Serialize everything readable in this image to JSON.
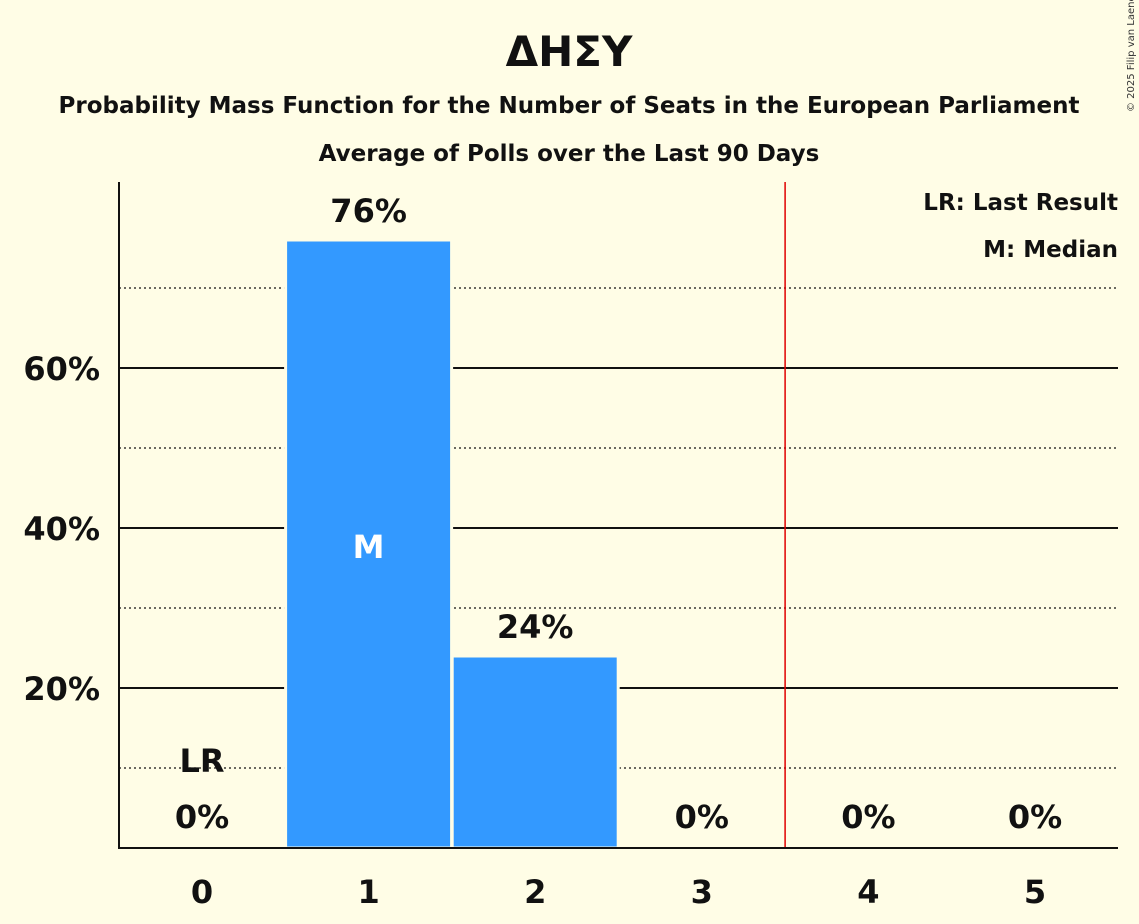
{
  "chart_data": {
    "type": "bar",
    "title": "ΔΗΣΥ",
    "subtitle": "Probability Mass Function for the Number of Seats in the European Parliament",
    "subtitle2": "Average of Polls over the Last 90 Days",
    "categories": [
      "0",
      "1",
      "2",
      "3",
      "4",
      "5"
    ],
    "values": [
      0,
      76,
      24,
      0,
      0,
      0
    ],
    "value_labels": [
      "0%",
      "76%",
      "24%",
      "0%",
      "0%",
      "0%"
    ],
    "yticks": [
      20,
      40,
      60
    ],
    "ytick_labels": [
      "20%",
      "40%",
      "60%"
    ],
    "ylim": [
      0,
      83
    ],
    "last_result": 0,
    "last_result_label": "LR",
    "median": 1,
    "median_label": "M",
    "majority_line": 3.5,
    "legend": [
      "LR: Last Result",
      "M: Median"
    ],
    "legend_position": "top-right",
    "copyright": "© 2025 Filip van Laenen",
    "bar_color": "#3399FF",
    "majority_color": "#E00000"
  }
}
